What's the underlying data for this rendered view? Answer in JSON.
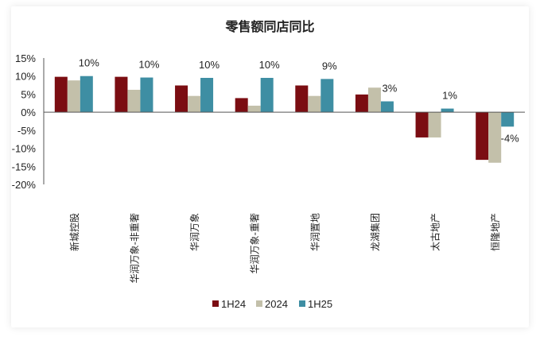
{
  "chart_data": {
    "type": "bar",
    "title": "零售额同店同比",
    "categories": [
      "新城控股",
      "华润万象-非重奢",
      "华润万象",
      "华润万象-重奢",
      "华润置地",
      "龙湖集团",
      "太古地产",
      "恒隆地产"
    ],
    "series": [
      {
        "name": "1H24",
        "color": "#7b0d12",
        "values": [
          9.8,
          9.8,
          7.4,
          3.9,
          7.4,
          4.9,
          -7.0,
          -13.2
        ]
      },
      {
        "name": "2024",
        "color": "#c3c0aa",
        "values": [
          8.8,
          6.2,
          4.5,
          1.8,
          4.5,
          6.8,
          -7.0,
          -14.0
        ]
      },
      {
        "name": "1H25",
        "color": "#3e8ea3",
        "values": [
          10,
          9.6,
          9.5,
          9.5,
          9.2,
          3,
          1,
          -4
        ]
      }
    ],
    "data_labels": [
      "10%",
      "10%",
      "10%",
      "10%",
      "9%",
      "3%",
      "1%",
      "-4%"
    ],
    "y_ticks": [
      "15%",
      "10%",
      "5%",
      "0%",
      "-5%",
      "-10%",
      "-15%",
      "-20%"
    ],
    "ylim": [
      -20,
      15
    ],
    "y_step": 5,
    "legend_position": "bottom",
    "grid": false
  }
}
